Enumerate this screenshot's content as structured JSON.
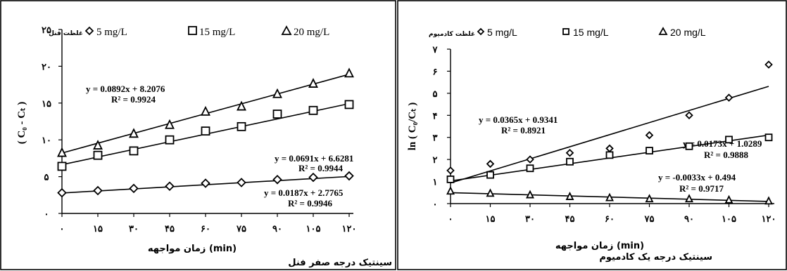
{
  "chart_data": [
    {
      "type": "scatter",
      "title": "سینتیک درجه صفر فنل",
      "xlabel": "زمان مواجهه (min)",
      "ylabel": "( C₀ - Cₜ )",
      "xlim": [
        0,
        120
      ],
      "ylim": [
        0,
        25
      ],
      "x_ticks": [
        0,
        15,
        30,
        45,
        60,
        75,
        90,
        105,
        120
      ],
      "x_tick_labels": [
        "۰",
        "۱۵",
        "۳۰",
        "۴۵",
        "۶۰",
        "۷۵",
        "۹۰",
        "۱۰۵",
        "۱۲۰"
      ],
      "y_ticks": [
        0,
        5,
        10,
        15,
        20,
        25
      ],
      "y_tick_labels": [
        "۰",
        "۵",
        "۱۰",
        "۱۵",
        "۲۰",
        "۲۵"
      ],
      "legend_title": "غلظت فنل",
      "legend_position": "top",
      "grid": false,
      "x": [
        0,
        15,
        30,
        45,
        60,
        75,
        90,
        105,
        120
      ],
      "series": [
        {
          "name": "5 mg/L",
          "marker": "diamond",
          "values": [
            2.8,
            3.1,
            3.4,
            3.7,
            4.1,
            4.2,
            4.6,
            4.9,
            5.1
          ],
          "slope": 0.0187,
          "intercept": 2.7765,
          "equation": "y = 0.0187x + 2.7765",
          "r2": "R² = 0.9946"
        },
        {
          "name": "15 mg/L",
          "marker": "square",
          "values": [
            6.4,
            7.9,
            8.5,
            10.0,
            11.2,
            11.8,
            13.5,
            14.0,
            14.8
          ],
          "slope": 0.0691,
          "intercept": 6.6281,
          "equation": "y = 0.0691x + 6.6281",
          "r2": "R² = 0.9944"
        },
        {
          "name": "20 mg/L",
          "marker": "triangle",
          "values": [
            8.2,
            9.2,
            10.8,
            12.0,
            13.8,
            14.5,
            16.2,
            17.6,
            19.0
          ],
          "slope": 0.0892,
          "intercept": 8.2076,
          "equation": "y = 0.0892x + 8.2076",
          "r2": "R² = 0.9924"
        }
      ]
    },
    {
      "type": "scatter",
      "title": "سینتیک درجه یک کادمیوم",
      "xlabel": "زمان مواجهه (min)",
      "ylabel": "ln ( C₀/Cₜ )",
      "xlim": [
        0,
        120
      ],
      "ylim": [
        0,
        7
      ],
      "x_ticks": [
        0,
        15,
        30,
        45,
        60,
        75,
        90,
        105,
        120
      ],
      "x_tick_labels": [
        "۰",
        "۱۵",
        "۳۰",
        "۴۵",
        "۶۰",
        "۷۵",
        "۹۰",
        "۱۰۵",
        "۱۲۰"
      ],
      "y_ticks": [
        0,
        1,
        2,
        3,
        4,
        5,
        6,
        7
      ],
      "y_tick_labels": [
        "۰",
        "۱",
        "۲",
        "۳",
        "۴",
        "۵",
        "۶",
        "۷"
      ],
      "legend_title": "غلظت کادمیوم",
      "legend_position": "top",
      "grid": false,
      "x": [
        0,
        15,
        30,
        45,
        60,
        75,
        90,
        105,
        120
      ],
      "series": [
        {
          "name": "5 mg/L",
          "marker": "diamond",
          "values": [
            1.5,
            1.8,
            2.0,
            2.3,
            2.5,
            3.1,
            4.0,
            4.8,
            6.3
          ],
          "slope": 0.0365,
          "intercept": 0.9341,
          "equation": "y = 0.0365x + 0.9341",
          "r2": "R² = 0.8921"
        },
        {
          "name": "15 mg/L",
          "marker": "square",
          "values": [
            1.1,
            1.3,
            1.6,
            1.9,
            2.2,
            2.4,
            2.6,
            2.9,
            3.0
          ],
          "slope": 0.0173,
          "intercept": 1.0289,
          "equation": "y = 0.0173x + 1.0289",
          "r2": "R² = 0.9888"
        },
        {
          "name": "20 mg/L",
          "marker": "triangle",
          "values": [
            0.55,
            0.45,
            0.38,
            0.3,
            0.25,
            0.2,
            0.2,
            0.15,
            0.1
          ],
          "slope": -0.0033,
          "intercept": 0.494,
          "equation": "y = -0.0033x + 0.494",
          "r2": "R² = 0.9717"
        }
      ]
    }
  ]
}
